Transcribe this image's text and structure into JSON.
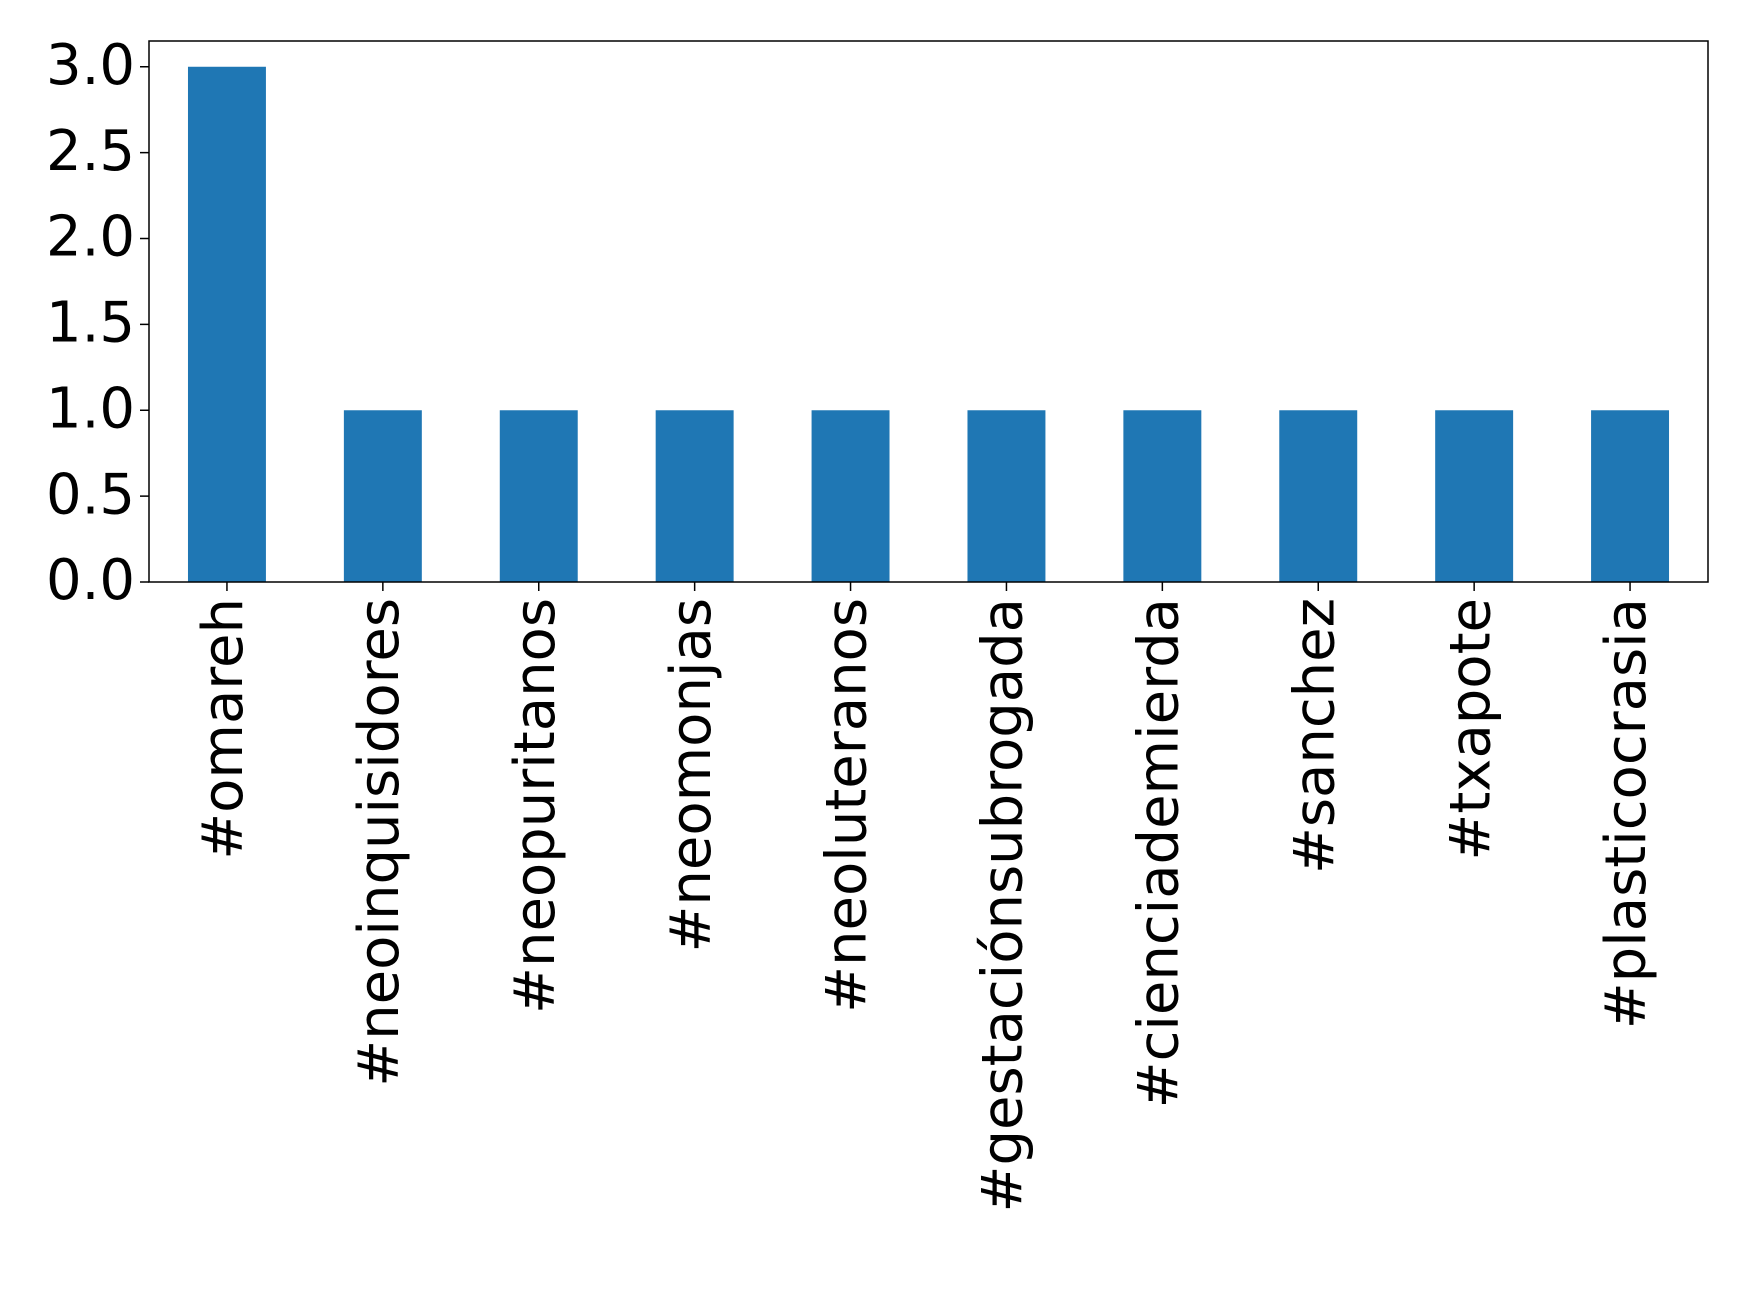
{
  "chart_data": {
    "type": "bar",
    "categories": [
      "#omareh",
      "#neoinquisidores",
      "#neopuritanos",
      "#neomonjas",
      "#neoluteranos",
      "#gestaciónsubrogada",
      "#cienciademierda",
      "#sanchez",
      "#txapote",
      "#plasticocrasia"
    ],
    "values": [
      3,
      1,
      1,
      1,
      1,
      1,
      1,
      1,
      1,
      1
    ],
    "color": "#1f77b4",
    "ylim": [
      0,
      3.15
    ],
    "yticks": [
      {
        "value": 0,
        "label": "0.0"
      },
      {
        "value": 0.5,
        "label": "0.5"
      },
      {
        "value": 1,
        "label": "1.0"
      },
      {
        "value": 1.5,
        "label": "1.5"
      },
      {
        "value": 2,
        "label": "2.0"
      },
      {
        "value": 2.5,
        "label": "2.5"
      },
      {
        "value": 3,
        "label": "3.0"
      }
    ],
    "grid": false
  }
}
